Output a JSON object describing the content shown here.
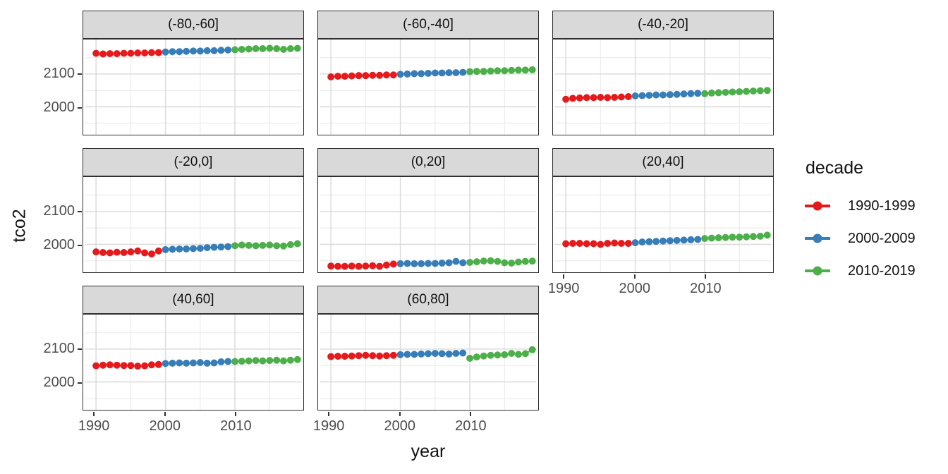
{
  "chart_data": {
    "type": "scatter",
    "xlabel": "year",
    "ylabel": "tco2",
    "xlim": [
      1988.4,
      2019.6
    ],
    "ylim": [
      1915,
      2205
    ],
    "x_ticks": [
      1990,
      2000,
      2010
    ],
    "x_minor_ticks": [
      1995,
      2005,
      2015
    ],
    "y_ticks": [
      2100,
      2000
    ],
    "y_minor_ticks": [
      2150,
      2050,
      1950
    ],
    "grid": true,
    "legend_position": "right",
    "legend": {
      "title": "decade",
      "entries": [
        {
          "label": "1990-1999",
          "color": "#E41A1C"
        },
        {
          "label": "2000-2009",
          "color": "#377EB8"
        },
        {
          "label": "2010-2019",
          "color": "#4DAF4A"
        }
      ]
    },
    "decades": [
      {
        "label": "1990-1999",
        "start": 1990,
        "end": 1999,
        "color": "#E41A1C"
      },
      {
        "label": "2000-2009",
        "start": 2000,
        "end": 2009,
        "color": "#377EB8"
      },
      {
        "label": "2010-2019",
        "start": 2010,
        "end": 2019,
        "color": "#4DAF4A"
      }
    ],
    "x": [
      1990,
      1991,
      1992,
      1993,
      1994,
      1995,
      1996,
      1997,
      1998,
      1999,
      2000,
      2001,
      2002,
      2003,
      2004,
      2005,
      2006,
      2007,
      2008,
      2009,
      2010,
      2011,
      2012,
      2013,
      2014,
      2015,
      2016,
      2017,
      2018,
      2019
    ],
    "facets": [
      {
        "label": "(-80,-60]",
        "values": [
          2163,
          2161,
          2162,
          2162,
          2163,
          2163,
          2164,
          2164,
          2165,
          2165,
          2167,
          2168,
          2168,
          2169,
          2170,
          2170,
          2171,
          2171,
          2172,
          2173,
          2174,
          2175,
          2176,
          2177,
          2177,
          2178,
          2177,
          2175,
          2177,
          2178
        ]
      },
      {
        "label": "(-60,-40]",
        "values": [
          2091,
          2093,
          2093,
          2094,
          2095,
          2095,
          2096,
          2096,
          2097,
          2097,
          2099,
          2100,
          2101,
          2101,
          2102,
          2103,
          2103,
          2104,
          2104,
          2105,
          2107,
          2108,
          2108,
          2109,
          2110,
          2110,
          2111,
          2112,
          2112,
          2113
        ]
      },
      {
        "label": "(-40,-20]",
        "values": [
          2023,
          2026,
          2027,
          2028,
          2028,
          2029,
          2028,
          2029,
          2030,
          2031,
          2033,
          2034,
          2035,
          2036,
          2036,
          2037,
          2038,
          2039,
          2040,
          2041,
          2040,
          2042,
          2043,
          2044,
          2045,
          2046,
          2047,
          2048,
          2049,
          2050
        ]
      },
      {
        "label": "(-20,0]",
        "values": [
          1977,
          1975,
          1974,
          1976,
          1975,
          1977,
          1980,
          1974,
          1971,
          1980,
          1984,
          1985,
          1986,
          1986,
          1987,
          1988,
          1990,
          1991,
          1992,
          1993,
          1996,
          1998,
          1997,
          1996,
          1997,
          1998,
          1996,
          1995,
          1999,
          2002
        ]
      },
      {
        "label": "(0,20]",
        "values": [
          1934,
          1933,
          1933,
          1934,
          1933,
          1934,
          1935,
          1933,
          1937,
          1940,
          1941,
          1942,
          1941,
          1941,
          1942,
          1942,
          1943,
          1944,
          1948,
          1944,
          1945,
          1947,
          1949,
          1950,
          1948,
          1944,
          1943,
          1946,
          1948,
          1949
        ]
      },
      {
        "label": "(20,40]",
        "values": [
          2002,
          2003,
          2003,
          2002,
          2002,
          2000,
          2003,
          2004,
          2003,
          2003,
          2005,
          2007,
          2008,
          2009,
          2010,
          2011,
          2012,
          2013,
          2014,
          2015,
          2018,
          2019,
          2020,
          2021,
          2022,
          2022,
          2023,
          2024,
          2025,
          2028
        ]
      },
      {
        "label": "(40,60]",
        "values": [
          2049,
          2051,
          2052,
          2051,
          2050,
          2050,
          2048,
          2049,
          2052,
          2053,
          2056,
          2057,
          2058,
          2057,
          2058,
          2059,
          2057,
          2058,
          2061,
          2062,
          2062,
          2063,
          2064,
          2065,
          2064,
          2065,
          2066,
          2064,
          2066,
          2068
        ]
      },
      {
        "label": "(60,80]",
        "values": [
          2077,
          2078,
          2078,
          2079,
          2080,
          2081,
          2080,
          2079,
          2080,
          2081,
          2083,
          2084,
          2084,
          2085,
          2086,
          2087,
          2086,
          2085,
          2087,
          2088,
          2072,
          2076,
          2079,
          2081,
          2082,
          2083,
          2087,
          2084,
          2086,
          2098
        ]
      }
    ],
    "style": {
      "strip_fill": "#d9d9d9",
      "panel_border": "#2f2f2f",
      "grid_major": "#dcdcdc",
      "grid_minor": "#eeeeee",
      "tick_text": "#4d4d4d",
      "point_radius": 5.1
    }
  }
}
